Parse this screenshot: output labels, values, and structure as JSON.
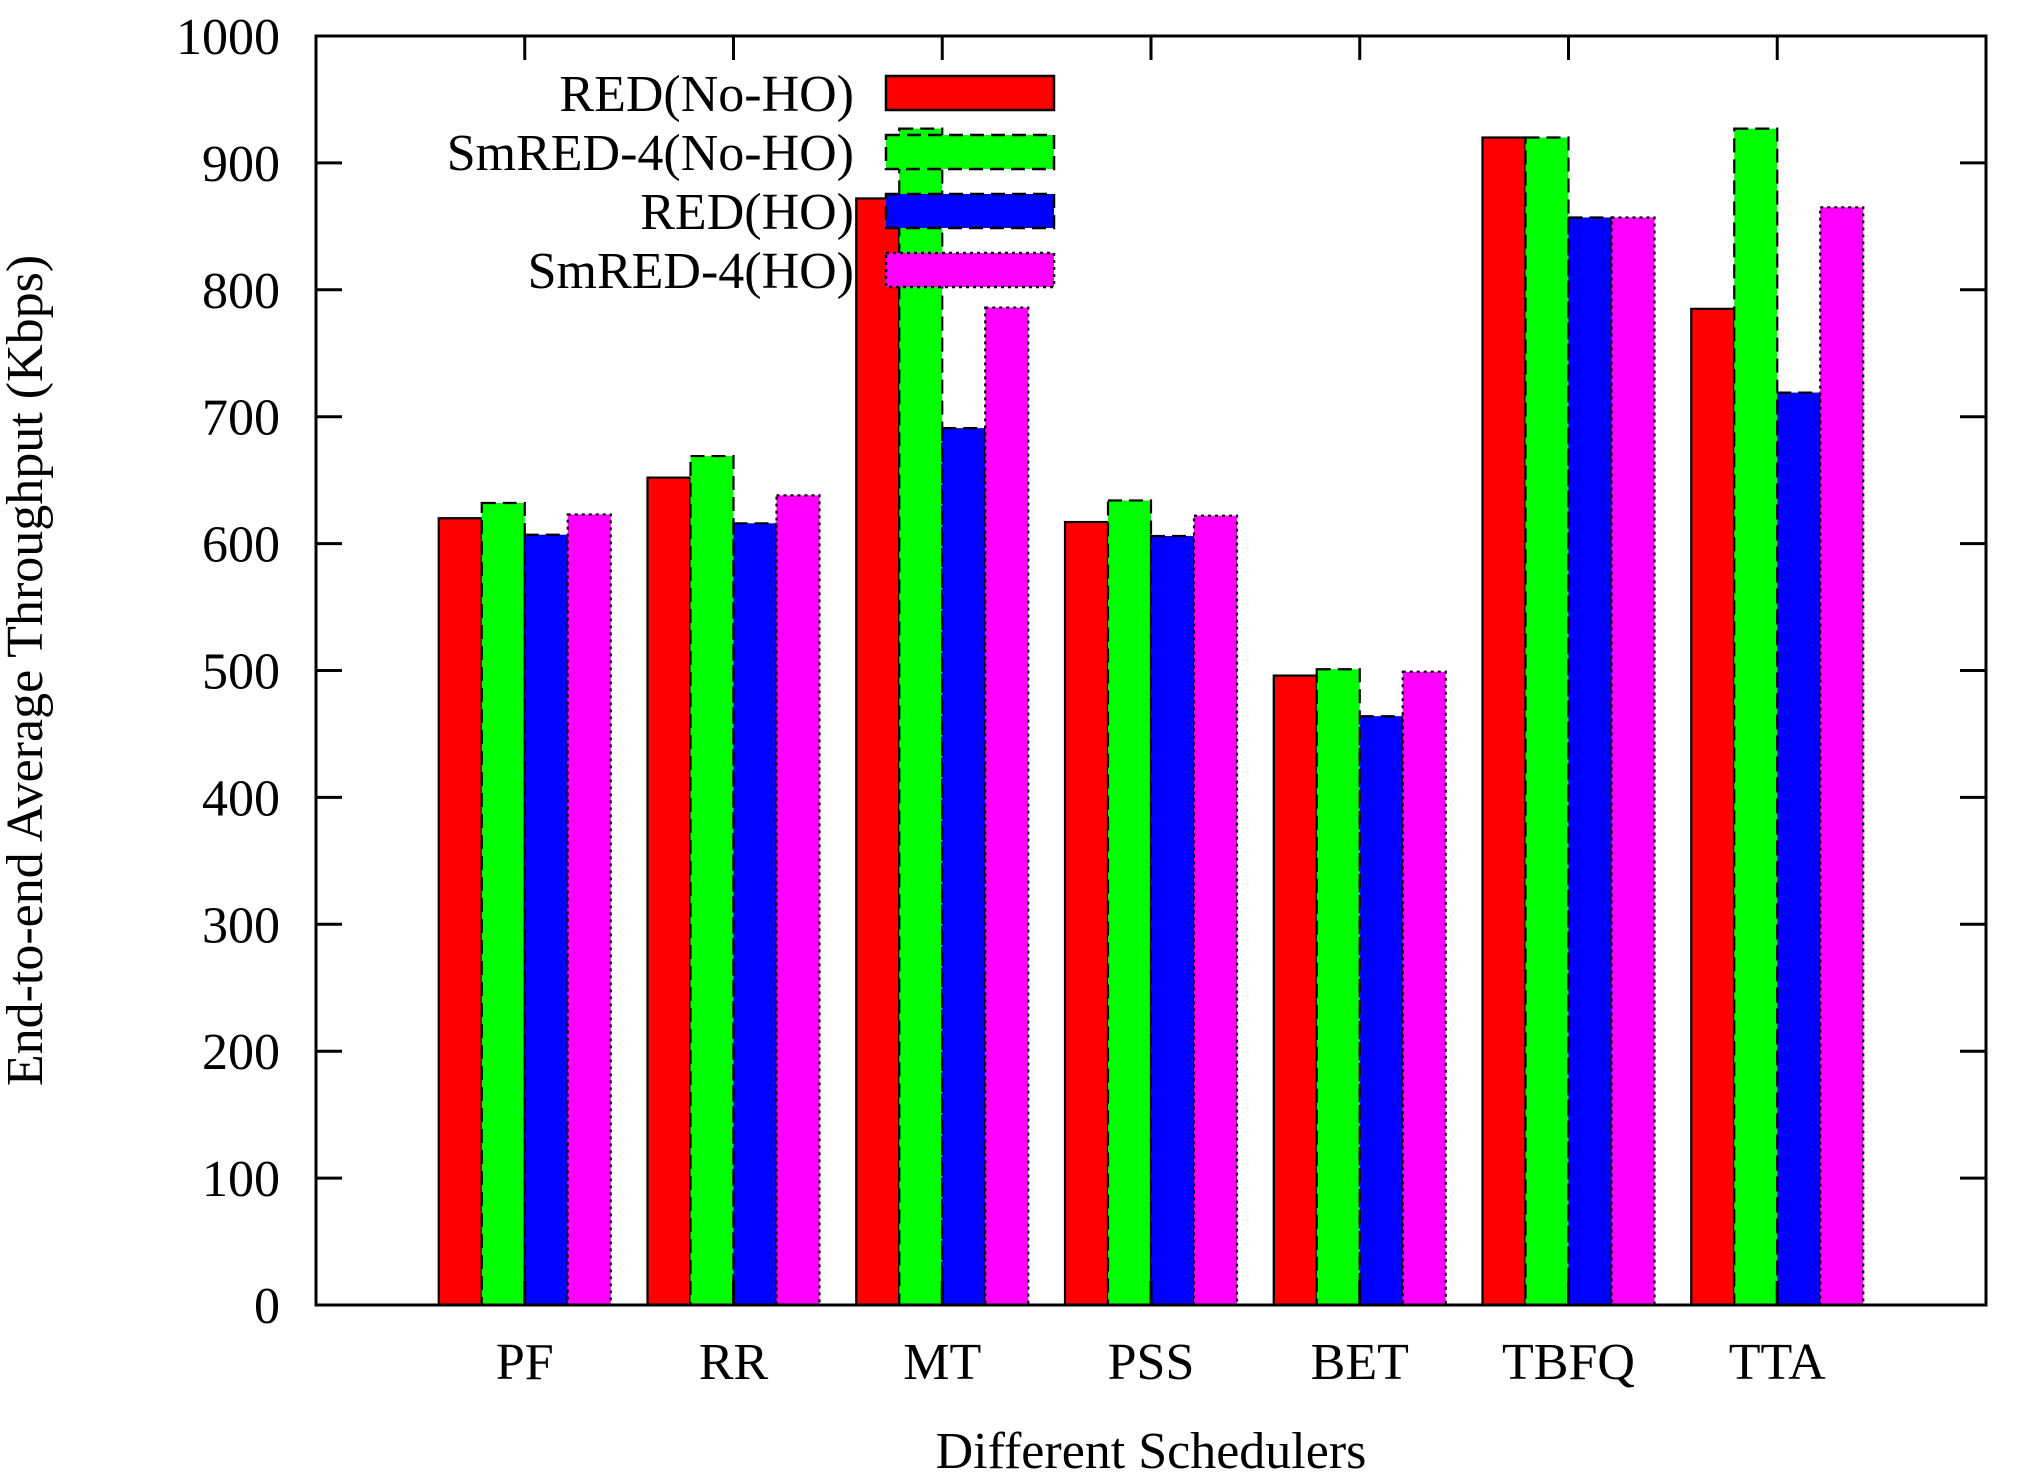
{
  "chart_data": {
    "type": "bar",
    "title": "",
    "xlabel": "Different Schedulers",
    "ylabel": "End-to-end Average Throughput (Kbps)",
    "ylim": [
      0,
      1000
    ],
    "yticks": [
      0,
      100,
      200,
      300,
      400,
      500,
      600,
      700,
      800,
      900,
      1000
    ],
    "categories": [
      "PF",
      "RR",
      "MT",
      "PSS",
      "BET",
      "TBFQ",
      "TTA"
    ],
    "series": [
      {
        "name": "RED(No-HO)",
        "color": "#ff0000",
        "dash": "solid",
        "values": [
          620,
          652,
          872,
          617,
          496,
          920,
          785
        ]
      },
      {
        "name": "SmRED-4(No-HO)",
        "color": "#00ff00",
        "dash": "dashed",
        "values": [
          632,
          669,
          927,
          634,
          501,
          920,
          927
        ]
      },
      {
        "name": "RED(HO)",
        "color": "#0000ff",
        "dash": "dashed",
        "values": [
          607,
          616,
          691,
          606,
          464,
          857,
          719
        ]
      },
      {
        "name": "SmRED-4(HO)",
        "color": "#ff00ff",
        "dash": "dotted",
        "values": [
          623,
          638,
          786,
          622,
          499,
          857,
          865
        ]
      }
    ],
    "legend_position": "top-left",
    "grid": false
  }
}
